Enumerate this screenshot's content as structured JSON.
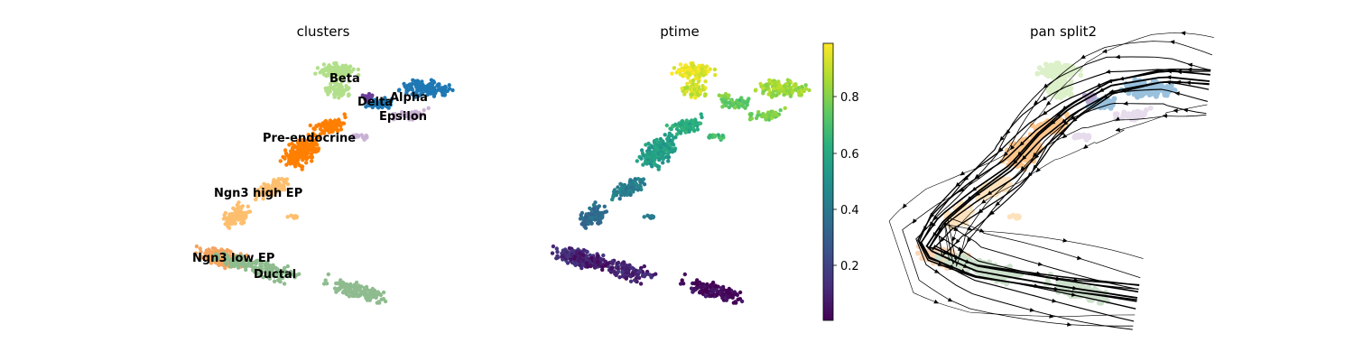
{
  "chart_data": [
    {
      "type": "scatter",
      "title": "clusters",
      "legend": "on data",
      "series": [
        {
          "name": "Ductal",
          "color": "#8fbc8f"
        },
        {
          "name": "Ngn3 low EP",
          "color": "#f4a460"
        },
        {
          "name": "Ngn3 high EP",
          "color": "#fdbf6f"
        },
        {
          "name": "Pre-endocrine",
          "color": "#ff7f00"
        },
        {
          "name": "Beta",
          "color": "#b2df8a"
        },
        {
          "name": "Alpha",
          "color": "#1f78b4"
        },
        {
          "name": "Delta",
          "color": "#6a3d9a"
        },
        {
          "name": "Epsilon",
          "color": "#cab2d6"
        }
      ],
      "labels": [
        "Beta",
        "Delta",
        "Alpha",
        "Epsilon",
        "Pre-endocrine",
        "Ngn3 high EP",
        "Ngn3 low EP",
        "Ductal"
      ]
    },
    {
      "type": "scatter",
      "title": "ptime",
      "colormap": "viridis",
      "colorbar": {
        "ticks": [
          0.2,
          0.4,
          0.6,
          0.8
        ],
        "tick_labels": [
          "0.2",
          "0.4",
          "0.6",
          "0.8"
        ],
        "range": [
          0.0,
          0.99
        ]
      }
    },
    {
      "type": "scatter",
      "title": "pan split2",
      "overlay": "streamlines",
      "background": "clusters (faded)"
    }
  ]
}
